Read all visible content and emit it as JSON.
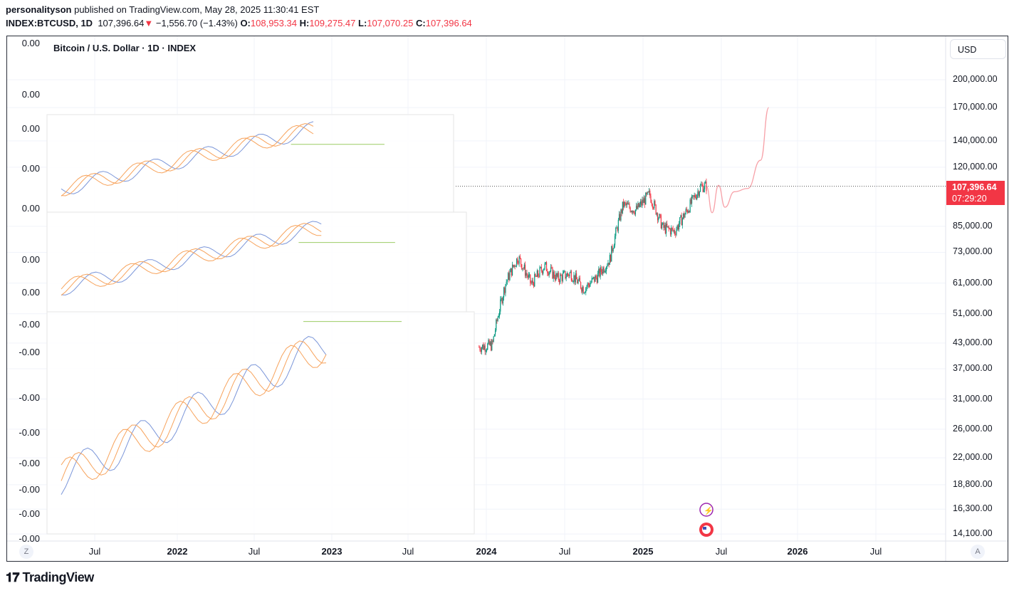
{
  "header": {
    "author": "personalityson",
    "published": "published on TradingView.com, May 28, 2025 11:30:41 EST",
    "symbol": "INDEX:BTCUSD, 1D",
    "last": "107,396.64",
    "change_arrow": "▼",
    "change": "−1,556.70 (−1.43%)",
    "o_label": "O:",
    "o": "108,953.34",
    "h_label": "H:",
    "h": "109,275.47",
    "l_label": "L:",
    "l": "107,070.25",
    "c_label": "C:",
    "c": "107,396.64"
  },
  "chart_title": "Bitcoin / U.S. Dollar · 1D · INDEX",
  "currency": "USD",
  "price_tag": {
    "price": "107,396.64",
    "countdown": "07:29:20"
  },
  "left_axis": [
    "0.00",
    "0.00",
    "0.00",
    "0.00",
    "0.00",
    "0.00",
    "0.00",
    "-0.00",
    "-0.00",
    "-0.00",
    "-0.00",
    "-0.00",
    "-0.00",
    "-0.00",
    "-0.00"
  ],
  "right_axis": [
    "200,000.00",
    "170,000.00",
    "140,000.00",
    "120,000.00",
    "85,000.00",
    "73,000.00",
    "61,000.00",
    "51,000.00",
    "43,000.00",
    "37,000.00",
    "31,000.00",
    "26,000.00",
    "22,000.00",
    "18,800.00",
    "16,300.00",
    "14,100.00"
  ],
  "x_axis": [
    {
      "label": "Jul",
      "year": false
    },
    {
      "label": "2022",
      "year": true
    },
    {
      "label": "Jul",
      "year": false
    },
    {
      "label": "2023",
      "year": true
    },
    {
      "label": "Jul",
      "year": false
    },
    {
      "label": "2024",
      "year": true
    },
    {
      "label": "Jul",
      "year": false
    },
    {
      "label": "2025",
      "year": true
    },
    {
      "label": "Jul",
      "year": false
    },
    {
      "label": "2026",
      "year": true
    },
    {
      "label": "Jul",
      "year": false
    }
  ],
  "zoom_btn": "Z",
  "auto_btn": "A",
  "brand": "TradingView",
  "colors": {
    "up": "#089981",
    "down": "#f23645",
    "projection": "#f7a1a8",
    "overlay_orange": "#f7a35c",
    "overlay_blue": "#7b96d9"
  },
  "chart_data": {
    "type": "candlestick",
    "scale": "log",
    "ylim": [
      14100,
      200000
    ],
    "xlim": [
      "2021-04",
      "2026-11"
    ],
    "monthly_close": {
      "x": [
        "2023-12",
        "2024-01",
        "2024-02",
        "2024-03",
        "2024-04",
        "2024-05",
        "2024-06",
        "2024-07",
        "2024-08",
        "2024-09",
        "2024-10",
        "2024-11",
        "2024-12",
        "2025-01",
        "2025-02",
        "2025-03",
        "2025-04",
        "2025-05"
      ],
      "y": [
        42000,
        42500,
        61000,
        71000,
        60500,
        67500,
        62700,
        64600,
        59000,
        63300,
        70200,
        96400,
        93400,
        102400,
        84300,
        82500,
        94200,
        107396
      ]
    },
    "projection": {
      "x": [
        "2025-05-28",
        "2025-06-10",
        "2025-06-25",
        "2025-07-10",
        "2025-08-01",
        "2025-09-01",
        "2025-10-01",
        "2025-10-20"
      ],
      "y": [
        107396,
        92000,
        108000,
        95000,
        104000,
        106000,
        125000,
        170000
      ]
    },
    "last_price_line": 107396.64
  }
}
